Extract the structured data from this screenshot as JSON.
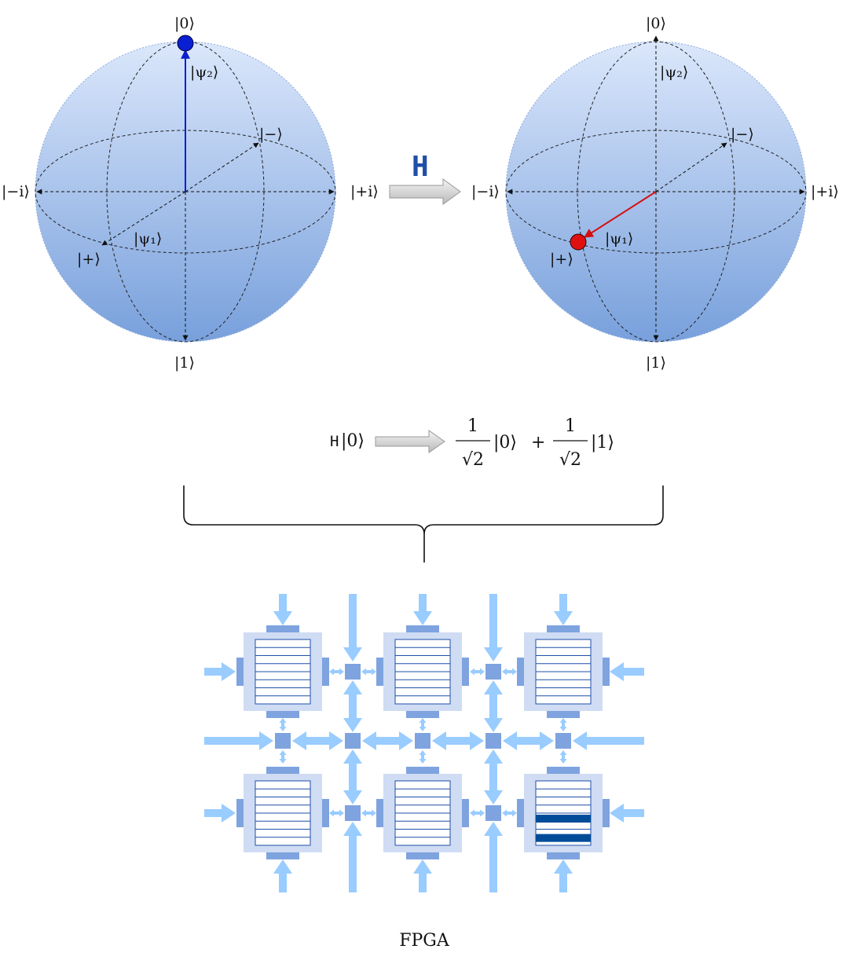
{
  "sphere_left": {
    "ket_zero": "|0⟩",
    "ket_one": "|1⟩",
    "ket_minus_i": "|−i⟩",
    "ket_plus_i": "|+i⟩",
    "ket_plus": "|+⟩",
    "ket_minus": "|−⟩",
    "psi1": "|ψ₁⟩",
    "psi2": "|ψ₂⟩",
    "state_color": "#0a1fd1"
  },
  "gate": {
    "symbol": "H"
  },
  "sphere_right": {
    "ket_zero": "|0⟩",
    "ket_one": "|1⟩",
    "ket_minus_i": "|−i⟩",
    "ket_plus_i": "|+i⟩",
    "ket_plus": "|+⟩",
    "ket_minus": "|−⟩",
    "psi1": "|ψ₁⟩",
    "psi2": "|ψ₂⟩",
    "state_color": "#e01010"
  },
  "equation": {
    "lhs_op": "H",
    "lhs_ket": "|0⟩",
    "numerator_1": "1",
    "denominator_1": "√2",
    "ket_1": "|0⟩",
    "plus": "+",
    "numerator_2": "1",
    "denominator_2": "√2",
    "ket_2": "|1⟩"
  },
  "fpga": {
    "label": "FPGA",
    "highlight_color": "#004c99",
    "arrow_color": "#99ccff",
    "block_color": "#cfdcf3"
  }
}
